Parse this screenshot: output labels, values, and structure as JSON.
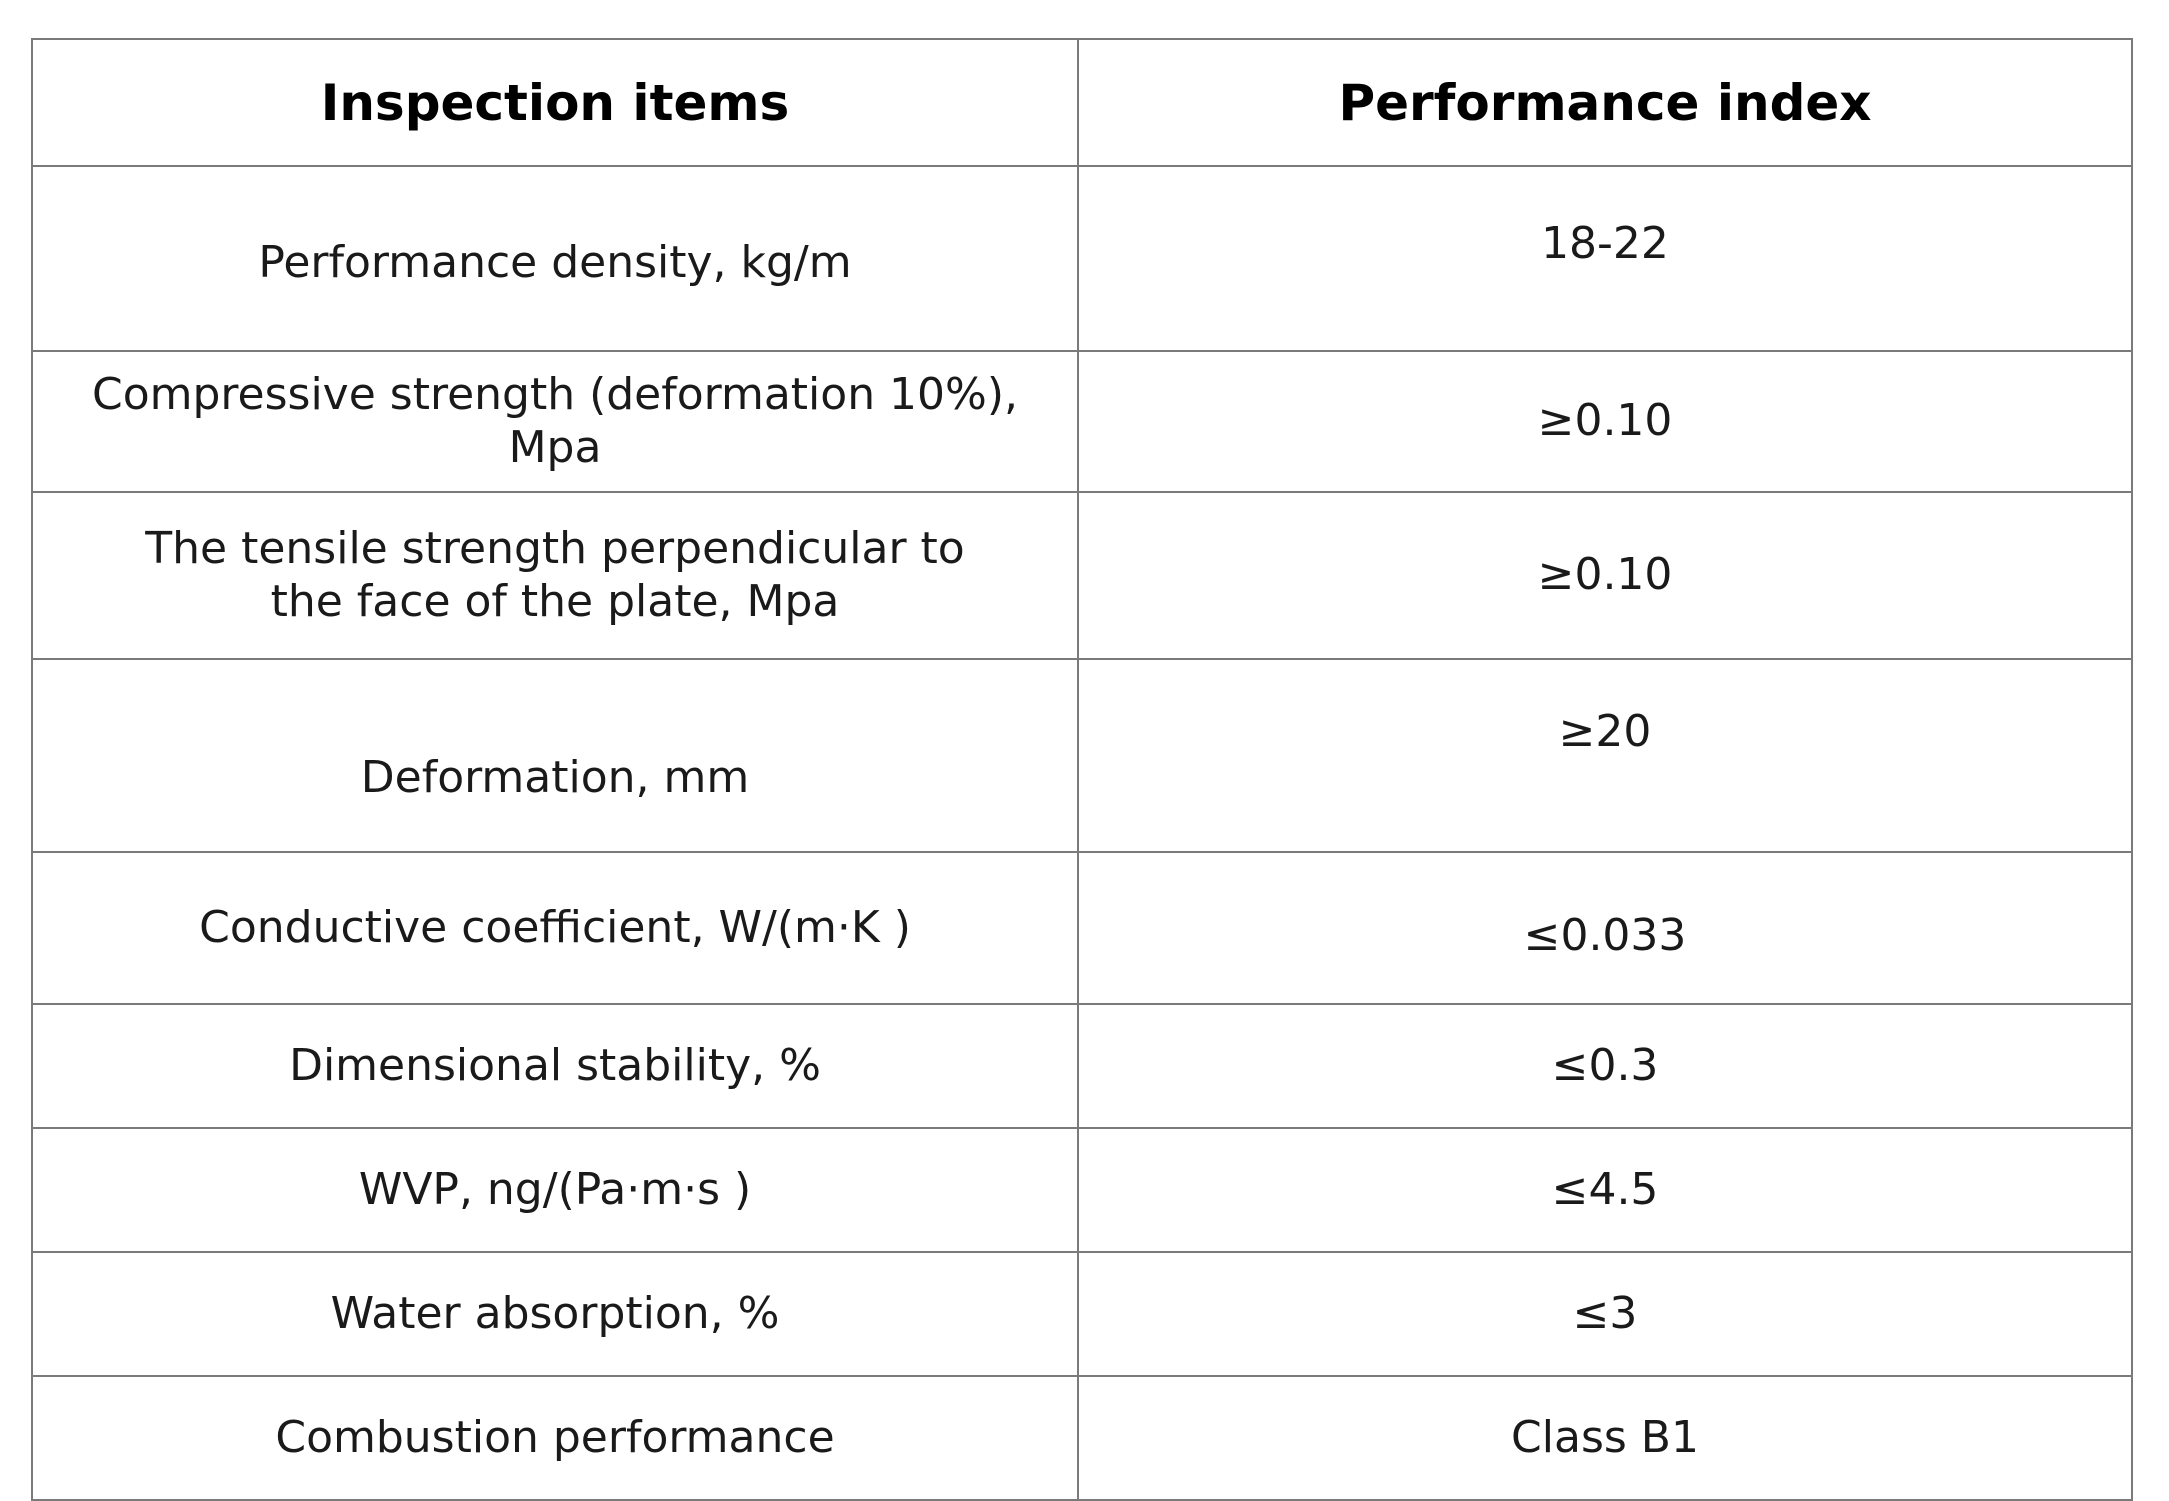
{
  "table": {
    "headers": {
      "item": "Inspection items",
      "index": "Performance index"
    },
    "rows": [
      {
        "item": "Performance density, kg/m",
        "index": "18-22"
      },
      {
        "item": "Compressive strength (deformation 10%), Mpa",
        "index": "≥0.10"
      },
      {
        "item": "The tensile strength perpendicular to\nthe face of the plate, Mpa",
        "index": "≥0.10"
      },
      {
        "item": "Deformation, mm",
        "index": "≥20"
      },
      {
        "item": "Conductive coefficient, W/(m·K )",
        "index": "≤0.033"
      },
      {
        "item": "Dimensional stability, %",
        "index": "≤0.3"
      },
      {
        "item": "WVP, ng/(Pa·m·s )",
        "index": "≤4.5"
      },
      {
        "item": "Water absorption, %",
        "index": "≤3"
      },
      {
        "item": "Combustion performance",
        "index": "Class B1"
      }
    ]
  }
}
